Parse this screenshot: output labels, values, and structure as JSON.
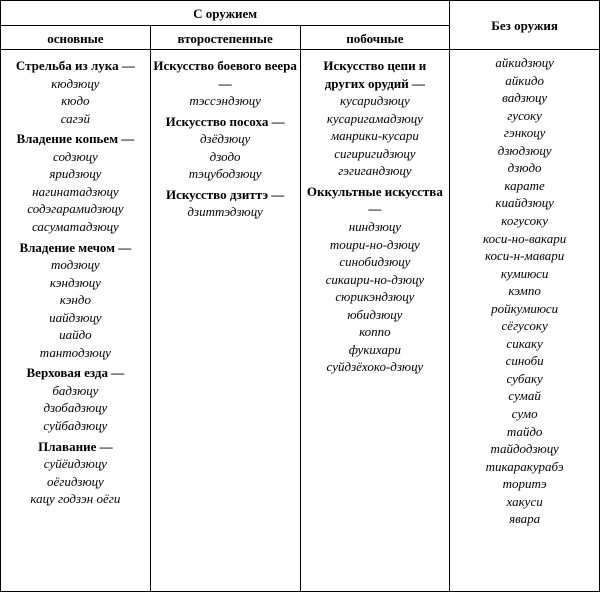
{
  "headers": {
    "with_weapon": "С оружием",
    "without_weapon": "Без оружия",
    "primary": "основные",
    "secondary": "второстепенные",
    "side": "побочные"
  },
  "columns": {
    "primary": [
      {
        "head": "Стрельба из лука —",
        "items": [
          "кюдзюцу",
          "кюдо",
          "сагэй"
        ]
      },
      {
        "head": "Владение копьем —",
        "items": [
          "содзюцу",
          "яридзюцу",
          "нагинатадзюцу",
          "содэгарамидзюцу",
          "сасуматадзюцу"
        ]
      },
      {
        "head": "Владение мечом —",
        "items": [
          "тодзюцу",
          "кэндзюцу",
          "кэндо",
          "иайдзюцу",
          "иайдо",
          "тантодзюцу"
        ]
      },
      {
        "head": "Верховая езда —",
        "items": [
          "бадзюцу",
          "дзобадзюцу",
          "суйбадзюцу"
        ]
      },
      {
        "head": "Плавание —",
        "items": [
          "суйёидзюцу",
          "оёгидзюцу",
          "кацу годзэн оёги"
        ]
      }
    ],
    "secondary": [
      {
        "head": "Искусство боевого веера —",
        "items": [
          "тэссэндзюцу"
        ]
      },
      {
        "head": "Искусство посоха —",
        "items": [
          "дзёдзюцу",
          "дзодо",
          "тэцубодзюцу"
        ]
      },
      {
        "head": "Искусство дзиттэ —",
        "items": [
          "дзиттэдзюцу"
        ]
      }
    ],
    "side": [
      {
        "head": "Искусство цепи и других орудий —",
        "items": [
          "кусаридзюцу",
          "кусаригамадзюцу",
          "манрики-кусари",
          "сигиригидзюцу",
          "гэгигандзюцу"
        ]
      },
      {
        "head": "Оккультные искусства —",
        "items": [
          "ниндзюцу",
          "тоири-но-дзюцу",
          "синобидзюцу",
          "сикаири-но-дзюцу",
          "сюрикэндзюцу",
          "юбидзюцу",
          "коппо",
          "фукихари",
          "суйдзёхоко-дзюцу"
        ]
      }
    ],
    "without": [
      "айкидзюцу",
      "айкидо",
      "вадзюцу",
      "гусоку",
      "гэнкоцу",
      "дзюдзюцу",
      "дзюдо",
      "карате",
      "киайдзюцу",
      "когусоку",
      "коси-но-вакари",
      "коси-н-мавари",
      "кумиюси",
      "кэмпо",
      "ройкумиюси",
      "сёгусоку",
      "сикаку",
      "синоби",
      "субаку",
      "сумай",
      "сумо",
      "тайдо",
      "тайдодзюцу",
      "тикаракурабэ",
      "торитэ",
      "хакуси",
      "явара"
    ]
  }
}
